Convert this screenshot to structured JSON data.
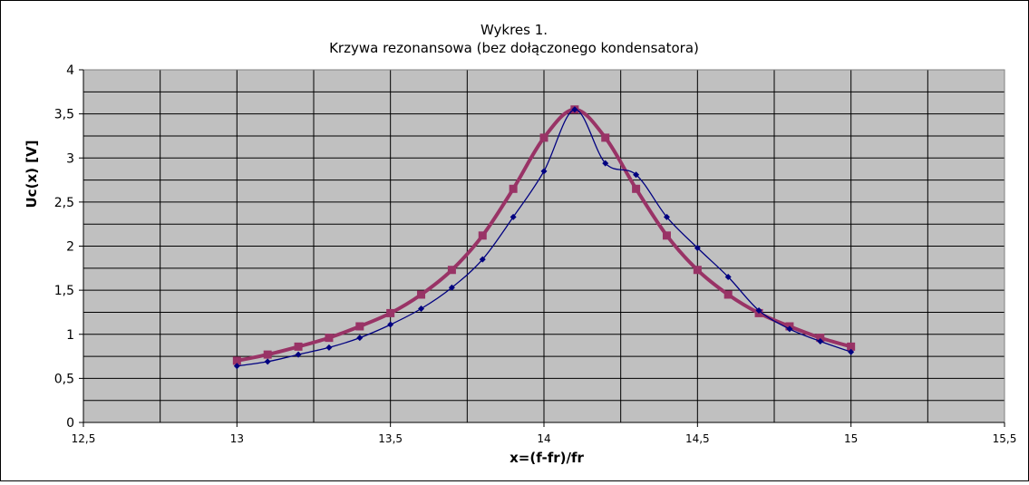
{
  "chart_data": {
    "type": "line",
    "title": "Wykres 1.",
    "subtitle": "Krzywa rezonansowa (bez dołączonego kondensatora)",
    "xlabel": "x=(f-fr)/fr",
    "ylabel": "Uc(x) [V]",
    "xlim": [
      12.5,
      15.5
    ],
    "ylim": [
      0,
      4
    ],
    "xticks": [
      12.5,
      13,
      13.5,
      14,
      14.5,
      15,
      15.5
    ],
    "xtick_labels": [
      "12,5",
      "13",
      "13,5",
      "14",
      "14,5",
      "15",
      "15,5"
    ],
    "yticks": [
      0,
      0.5,
      1,
      1.5,
      2,
      2.5,
      3,
      3.5,
      4
    ],
    "ytick_labels": [
      "0",
      "0,5",
      "1",
      "1,5",
      "2",
      "2,5",
      "3",
      "3,5",
      "4"
    ],
    "x_gridlines": [
      12.75,
      13,
      13.25,
      13.5,
      13.75,
      14,
      14.25,
      14.5,
      14.75,
      15,
      15.25
    ],
    "y_gridlines": [
      0.25,
      0.5,
      0.75,
      1,
      1.25,
      1.5,
      1.75,
      2,
      2.25,
      2.5,
      2.75,
      3,
      3.25,
      3.5,
      3.75
    ],
    "grid": true,
    "legend": "none",
    "plot_background": "#c0c0c0",
    "series": [
      {
        "color": "#000080",
        "marker": "diamond",
        "x": [
          13.0,
          13.1,
          13.2,
          13.3,
          13.4,
          13.5,
          13.6,
          13.7,
          13.8,
          13.9,
          14.0,
          14.1,
          14.2,
          14.3,
          14.4,
          14.5,
          14.6,
          14.7,
          14.8,
          14.9,
          15.0
        ],
        "values": [
          0.64,
          0.69,
          0.77,
          0.85,
          0.96,
          1.11,
          1.29,
          1.53,
          1.85,
          2.33,
          2.85,
          3.55,
          2.94,
          2.81,
          2.33,
          1.98,
          1.65,
          1.27,
          1.06,
          0.92,
          0.8
        ]
      },
      {
        "color": "#993366",
        "marker": "square",
        "x": [
          13.0,
          13.1,
          13.2,
          13.3,
          13.4,
          13.5,
          13.6,
          13.7,
          13.8,
          13.9,
          14.0,
          14.1,
          14.2,
          14.3,
          14.4,
          14.5,
          14.6,
          14.7,
          14.8,
          14.9,
          15.0
        ],
        "values": [
          0.7,
          0.77,
          0.86,
          0.96,
          1.09,
          1.24,
          1.45,
          1.73,
          2.12,
          2.65,
          3.23,
          3.55,
          3.23,
          2.65,
          2.12,
          1.73,
          1.45,
          1.24,
          1.09,
          0.96,
          0.86
        ]
      }
    ]
  }
}
